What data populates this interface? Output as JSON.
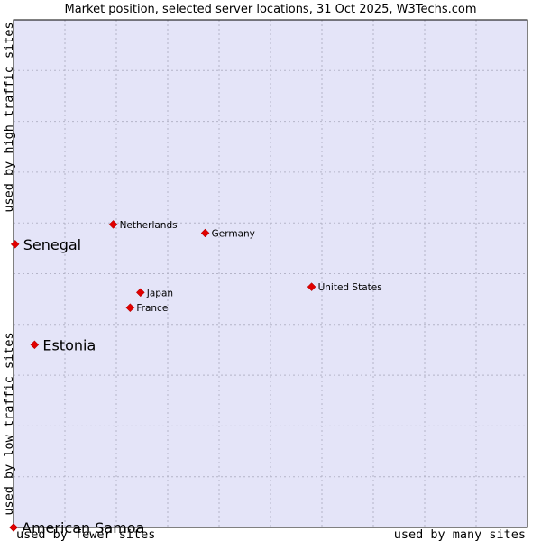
{
  "chart_data": {
    "type": "scatter",
    "title": "Market position, selected server locations, 31 Oct 2025, W3Techs.com",
    "xlabel_left": "used by fewer sites",
    "xlabel_right": "used by many sites",
    "ylabel_low": "used by low traffic sites",
    "ylabel_high": "used by high traffic sites",
    "xlim": [
      0,
      100
    ],
    "ylim": [
      0,
      100
    ],
    "grid": true,
    "colors": {
      "plot_bg": "#e4e4f8",
      "marker": "#e00000",
      "border": "#000000"
    },
    "points": [
      {
        "name": "Netherlands",
        "x": 19.4,
        "y": 59.7,
        "size": "small"
      },
      {
        "name": "Germany",
        "x": 37.3,
        "y": 58.0,
        "size": "small"
      },
      {
        "name": "Senegal",
        "x": 0.3,
        "y": 55.8,
        "size": "big"
      },
      {
        "name": "United States",
        "x": 58.0,
        "y": 47.4,
        "size": "small"
      },
      {
        "name": "Japan",
        "x": 24.7,
        "y": 46.3,
        "size": "small"
      },
      {
        "name": "France",
        "x": 22.7,
        "y": 43.3,
        "size": "small"
      },
      {
        "name": "Estonia",
        "x": 4.1,
        "y": 36.0,
        "size": "big"
      },
      {
        "name": "American Samoa",
        "x": 0.0,
        "y": 0.0,
        "size": "big"
      }
    ]
  }
}
